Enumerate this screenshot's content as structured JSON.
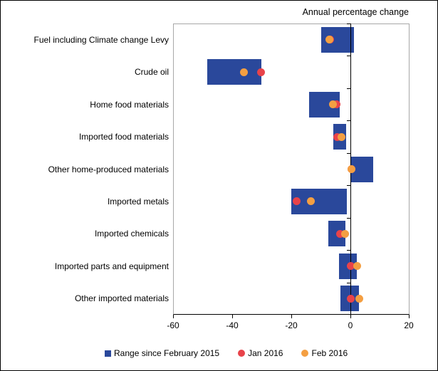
{
  "chart_data": {
    "type": "bar",
    "subtype": "horizontal-range-bars-with-dot-markers",
    "title": "Annual percentage change",
    "xlabel": "",
    "ylabel": "",
    "xlim": [
      -60,
      20
    ],
    "x_ticks": [
      -60,
      -40,
      -20,
      0,
      20
    ],
    "grid": false,
    "legend_position": "bottom",
    "plot_border_color": "#A8A8A8",
    "axis_color": "#000000",
    "categories": [
      "Fuel including Climate change Levy",
      "Crude oil",
      "Home food materials",
      "Imported food materials",
      "Other home-produced materials",
      "Imported metals",
      "Imported chemicals",
      "Imported parts and equipment",
      "Other imported materials"
    ],
    "series": [
      {
        "name": "Range since February 2015",
        "style": "range-bar",
        "color": "#2A489B",
        "ranges": [
          [
            -9.9,
            1.2
          ],
          [
            -48.4,
            -30.2
          ],
          [
            -14.0,
            -3.6
          ],
          [
            -5.9,
            -1.4
          ],
          [
            0.3,
            7.8
          ],
          [
            -19.9,
            -1.3
          ],
          [
            -7.5,
            -1.6
          ],
          [
            -3.9,
            2.2
          ],
          [
            -3.4,
            3.0
          ]
        ]
      },
      {
        "name": "Jan 2016",
        "style": "dot",
        "color": "#E8434A",
        "values": [
          -6.9,
          -30.3,
          -4.8,
          -4.4,
          0.3,
          -18.1,
          -3.4,
          0.0,
          0.1
        ]
      },
      {
        "name": "Feb 2016",
        "style": "dot",
        "color": "#F49F42",
        "values": [
          -7.2,
          -36.0,
          -6.0,
          -3.1,
          0.3,
          -13.5,
          -1.9,
          2.2,
          2.9
        ]
      }
    ]
  }
}
